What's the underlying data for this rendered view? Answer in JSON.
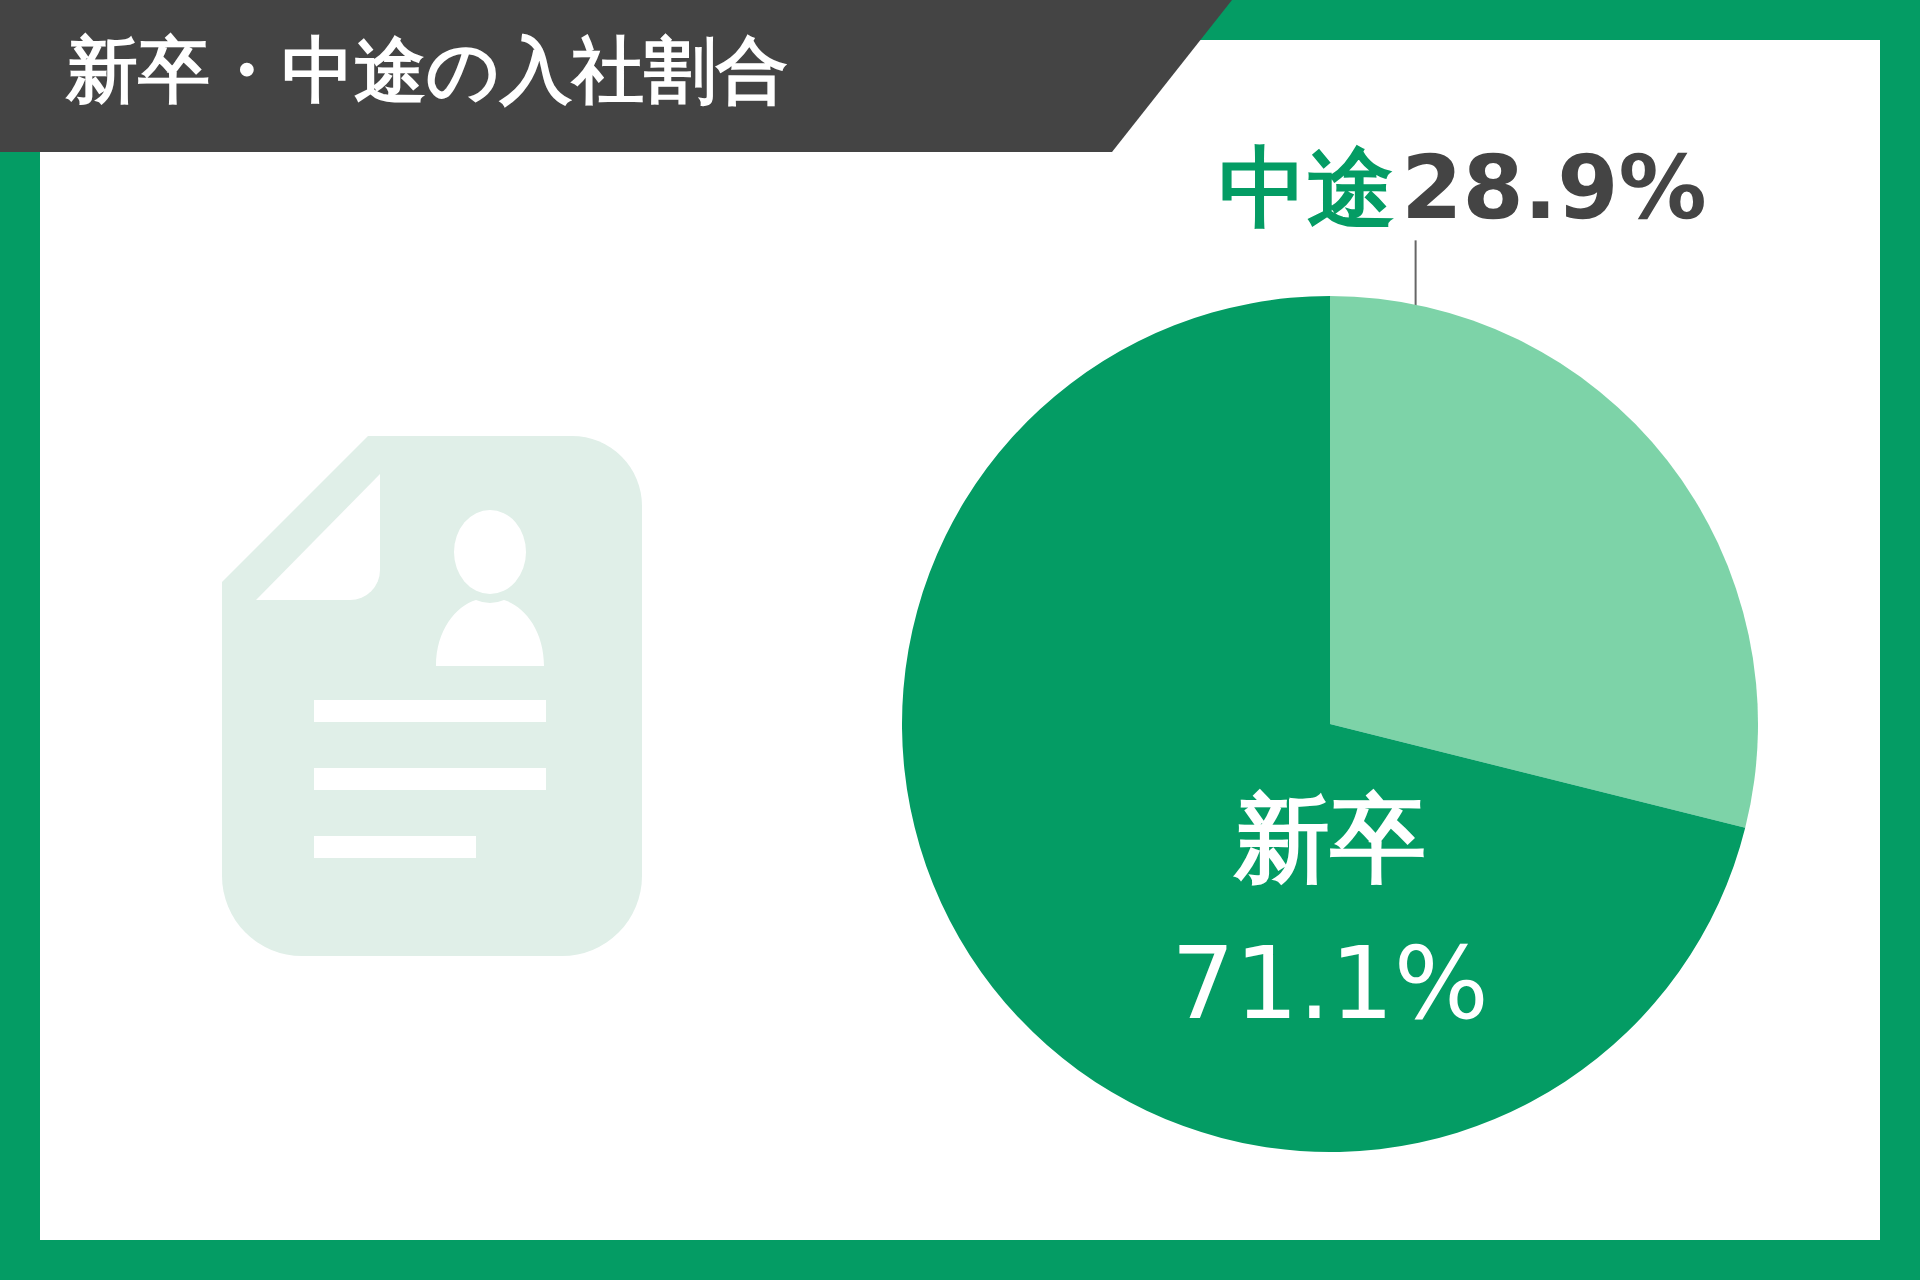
{
  "chart_data": {
    "type": "pie",
    "title": "新卒・中途の入社割合",
    "categories": [
      "中途",
      "新卒"
    ],
    "values": [
      28.9,
      71.1
    ],
    "colors": [
      "#7dd3a8",
      "#049c64"
    ],
    "value_labels": [
      "28.9%",
      "71.1%"
    ],
    "legend": false
  }
}
